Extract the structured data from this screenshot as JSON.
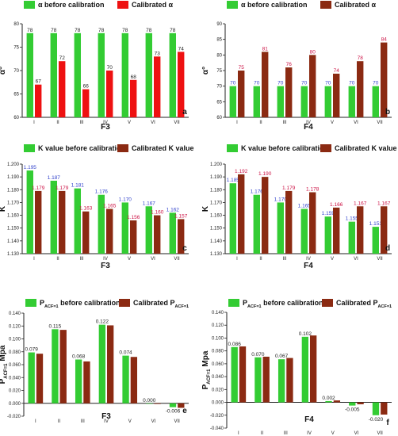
{
  "colors": {
    "green": "#33cc33",
    "red": "#ee1111",
    "brown": "#8b2a12",
    "axis": "#222222",
    "label_blue": "#3344cc",
    "label_red": "#cc1144",
    "label_dark": "#222222"
  },
  "chart_data": [
    {
      "id": "a",
      "type": "bar",
      "panel_label": "a",
      "ylabel": "α°",
      "xlabel": "F3",
      "ylim": [
        60,
        80
      ],
      "yticks": [
        60,
        65,
        70,
        75,
        80
      ],
      "categories": [
        "I",
        "II",
        "III",
        "IV",
        "V",
        "VI",
        "VII"
      ],
      "legend_position": "top",
      "label_color": "dark",
      "series": [
        {
          "name": "α before calibration",
          "color": "green",
          "values": [
            78,
            78,
            78,
            78,
            78,
            78,
            78
          ],
          "labels": [
            "78",
            "78",
            "78",
            "78",
            "78",
            "78",
            "78"
          ]
        },
        {
          "name": "Calibrated α",
          "color": "red",
          "values": [
            67,
            72,
            66,
            70,
            68,
            73,
            74
          ],
          "labels": [
            "67",
            "72",
            "66",
            "70",
            "68",
            "73",
            "74"
          ]
        }
      ]
    },
    {
      "id": "b",
      "type": "bar",
      "panel_label": "b",
      "ylabel": "α°",
      "xlabel": "F4",
      "ylim": [
        60,
        90
      ],
      "yticks": [
        60,
        65,
        70,
        75,
        80,
        85,
        90
      ],
      "categories": [
        "I",
        "II",
        "III",
        "IV",
        "V",
        "VI",
        "VII"
      ],
      "legend_position": "top",
      "label_color": "colored",
      "series": [
        {
          "name": "α before calibration",
          "color": "green",
          "values": [
            70,
            70,
            70,
            70,
            70,
            70,
            70
          ],
          "labels": [
            "70",
            "70",
            "70",
            "70",
            "70",
            "70",
            "70"
          ]
        },
        {
          "name": "Calibrated α",
          "color": "brown",
          "values": [
            75,
            81,
            76,
            80,
            74,
            78,
            84
          ],
          "labels": [
            "75",
            "81",
            "76",
            "80",
            "74",
            "78",
            "84"
          ]
        }
      ]
    },
    {
      "id": "c",
      "type": "bar",
      "panel_label": "c",
      "ylabel": "K",
      "xlabel": "F3",
      "ylim": [
        1.13,
        1.2
      ],
      "yticks": [
        1.13,
        1.14,
        1.15,
        1.16,
        1.17,
        1.18,
        1.19,
        1.2
      ],
      "ytick_labels": [
        "1.130",
        "1.140",
        "1.150",
        "1.160",
        "1.170",
        "1.180",
        "1.190",
        "1.200"
      ],
      "categories": [
        "I",
        "II",
        "III",
        "IV",
        "V",
        "VI",
        "VII"
      ],
      "legend_position": "top",
      "label_color": "colored",
      "series": [
        {
          "name": "K value before calibration",
          "color": "green",
          "values": [
            1.195,
            1.187,
            1.181,
            1.176,
            1.17,
            1.167,
            1.162
          ],
          "labels": [
            "1.195",
            "1.187",
            "1.181",
            "1.176",
            "1.170",
            "1.167",
            "1.162"
          ]
        },
        {
          "name": "Calibrated K value",
          "color": "brown",
          "values": [
            1.179,
            1.179,
            1.163,
            1.165,
            1.156,
            1.16,
            1.157
          ],
          "labels": [
            "1.179",
            "1.179",
            "1.163",
            "1.165",
            "1.156",
            "1.160",
            "1.157"
          ]
        }
      ]
    },
    {
      "id": "d",
      "type": "bar",
      "panel_label": "d",
      "ylabel": "K",
      "xlabel": "F4",
      "ylim": [
        1.13,
        1.2
      ],
      "yticks": [
        1.13,
        1.14,
        1.15,
        1.16,
        1.17,
        1.18,
        1.19,
        1.2
      ],
      "ytick_labels": [
        "1.130",
        "1.140",
        "1.150",
        "1.160",
        "1.170",
        "1.180",
        "1.190",
        "1.200"
      ],
      "categories": [
        "I",
        "II",
        "III",
        "IV",
        "V",
        "VI",
        "VII"
      ],
      "legend_position": "top",
      "label_color": "colored",
      "series": [
        {
          "name": "K value before calibration",
          "color": "green",
          "values": [
            1.185,
            1.176,
            1.17,
            1.165,
            1.159,
            1.155,
            1.151
          ],
          "labels": [
            "1.185",
            "1.176",
            "1.170",
            "1.165",
            "1.159",
            "1.155",
            "1.151"
          ]
        },
        {
          "name": "Calibrated K value",
          "color": "brown",
          "values": [
            1.192,
            1.19,
            1.179,
            1.178,
            1.166,
            1.167,
            1.167
          ],
          "labels": [
            "1.192",
            "1.190",
            "1.179",
            "1.178",
            "1.166",
            "1.167",
            "1.167"
          ]
        }
      ]
    },
    {
      "id": "e",
      "type": "bar",
      "panel_label": "e",
      "ylabel": "PACF=1 Mpa",
      "ylabel_main": "P",
      "ylabel_sub": "ACF=1",
      "ylabel_unit": "Mpa",
      "xlabel": "F3",
      "ylim": [
        -0.02,
        0.14
      ],
      "yticks": [
        -0.02,
        0,
        0.02,
        0.04,
        0.06,
        0.08,
        0.1,
        0.12,
        0.14
      ],
      "ytick_labels": [
        "-0.020",
        "0.000",
        "0.020",
        "0.040",
        "0.060",
        "0.080",
        "0.100",
        "0.120",
        "0.140"
      ],
      "categories": [
        "I",
        "II",
        "III",
        "IV",
        "V",
        "VI",
        "VII"
      ],
      "legend_position": "top",
      "label_color": "dark",
      "series": [
        {
          "name": "PACF=1 before calibration",
          "name_main": "P",
          "name_sub": "ACF=1",
          "name_rest": " before calibration",
          "color": "green",
          "values": [
            0.079,
            0.115,
            0.068,
            0.122,
            0.074,
            0.0,
            -0.006
          ],
          "labels": [
            "0.079",
            "0.115",
            "0.068",
            "0.122",
            "0.074",
            "0.000",
            "-0.006"
          ]
        },
        {
          "name": "Calibrated PACF=1",
          "name_main": "Calibrated P",
          "name_sub": "ACF=1",
          "name_rest": "",
          "color": "brown",
          "values": [
            0.077,
            0.114,
            0.065,
            0.121,
            0.072,
            -0.001,
            -0.007
          ],
          "labels": [
            "",
            "",
            "",
            "",
            "",
            "",
            ""
          ]
        }
      ]
    },
    {
      "id": "f",
      "type": "bar",
      "panel_label": "f",
      "ylabel": "PACF=1 Mpa",
      "ylabel_main": "P",
      "ylabel_sub": "ACF=1",
      "ylabel_unit": "Mpa",
      "xlabel": "F4",
      "ylim": [
        -0.04,
        0.14
      ],
      "yticks": [
        -0.04,
        -0.02,
        0,
        0.02,
        0.04,
        0.06,
        0.08,
        0.1,
        0.12,
        0.14
      ],
      "ytick_labels": [
        "-0.040",
        "-0.020",
        "0.000",
        "0.020",
        "0.040",
        "0.060",
        "0.080",
        "0.100",
        "0.120",
        "0.140"
      ],
      "categories": [
        "I",
        "II",
        "III",
        "IV",
        "V",
        "VI",
        "VII"
      ],
      "legend_position": "top",
      "label_color": "dark",
      "series": [
        {
          "name": "PACF=1 before calibration",
          "name_main": "P",
          "name_sub": "ACF=1",
          "name_rest": " before calibration",
          "color": "green",
          "values": [
            0.086,
            0.07,
            0.067,
            0.102,
            0.002,
            -0.005,
            -0.02
          ],
          "labels": [
            "0.086",
            "0.070",
            "0.067",
            "0.102",
            "0.002",
            "-0.005",
            "-0.020"
          ]
        },
        {
          "name": "Calibrated PACF=1",
          "name_main": "Calibrated P",
          "name_sub": "ACF=1",
          "name_rest": "",
          "color": "brown",
          "values": [
            0.087,
            0.071,
            0.069,
            0.104,
            0.003,
            -0.003,
            -0.019
          ],
          "labels": [
            "",
            "",
            "",
            "",
            "",
            "",
            ""
          ]
        }
      ]
    }
  ]
}
